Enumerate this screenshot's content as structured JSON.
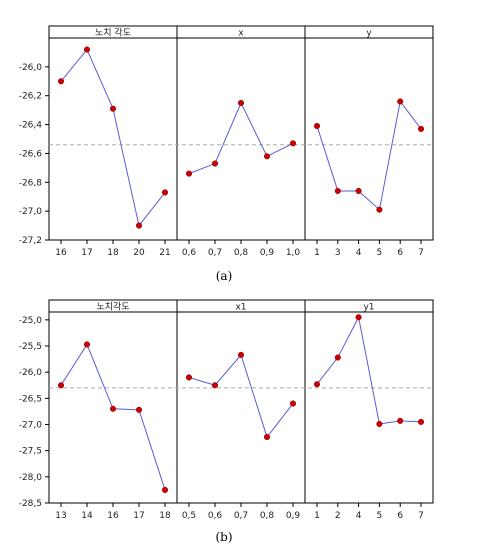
{
  "chart_data": [
    {
      "type": "line",
      "caption": "(a)",
      "ylim": [
        -27.2,
        -25.8
      ],
      "yticks": [
        "-26,0",
        "-26,2",
        "-26,4",
        "-26,6",
        "-26,8",
        "-27,0",
        "-27,2"
      ],
      "yticks_values": [
        -26.0,
        -26.2,
        -26.4,
        -26.6,
        -26.8,
        -27.0,
        -27.2
      ],
      "mean_line": -26.54,
      "colors": {
        "line": "#5b5bd6",
        "marker": "#cc0000",
        "mean": "#aaaaaa"
      },
      "panels": [
        {
          "name": "노치 각도",
          "categories": [
            "16",
            "17",
            "18",
            "20",
            "21"
          ],
          "values": [
            -26.1,
            -25.88,
            -26.29,
            -27.1,
            -26.87
          ]
        },
        {
          "name": "x",
          "categories": [
            "0,6",
            "0,7",
            "0,8",
            "0,9",
            "1,0"
          ],
          "values": [
            -26.74,
            -26.67,
            -26.25,
            -26.62,
            -26.53
          ]
        },
        {
          "name": "y",
          "categories": [
            "1",
            "3",
            "4",
            "5",
            "6",
            "7"
          ],
          "values": [
            -26.41,
            -26.86,
            -26.86,
            -26.99,
            -26.24,
            -26.43
          ]
        }
      ]
    },
    {
      "type": "line",
      "caption": "(b)",
      "ylim": [
        -28.5,
        -24.85
      ],
      "yticks": [
        "-25,0",
        "-25,5",
        "-26,0",
        "-26,5",
        "-27,0",
        "-27,5",
        "-28,0",
        "-28,5"
      ],
      "yticks_values": [
        -25.0,
        -25.5,
        -26.0,
        -26.5,
        -27.0,
        -27.5,
        -28.0,
        -28.5
      ],
      "mean_line": -26.3,
      "colors": {
        "line": "#5b5bd6",
        "marker": "#cc0000",
        "mean": "#aaaaaa"
      },
      "panels": [
        {
          "name": "노치각도",
          "categories": [
            "13",
            "14",
            "16",
            "17",
            "18"
          ],
          "values": [
            -26.25,
            -25.47,
            -26.7,
            -26.72,
            -28.25
          ]
        },
        {
          "name": "x1",
          "categories": [
            "0,5",
            "0,6",
            "0,7",
            "0,8",
            "0,9"
          ],
          "values": [
            -26.1,
            -26.25,
            -25.67,
            -27.24,
            -26.6
          ]
        },
        {
          "name": "y1",
          "categories": [
            "1",
            "2",
            "4",
            "5",
            "6",
            "7"
          ],
          "values": [
            -26.23,
            -25.72,
            -24.95,
            -26.99,
            -26.93,
            -26.95
          ]
        }
      ]
    }
  ]
}
